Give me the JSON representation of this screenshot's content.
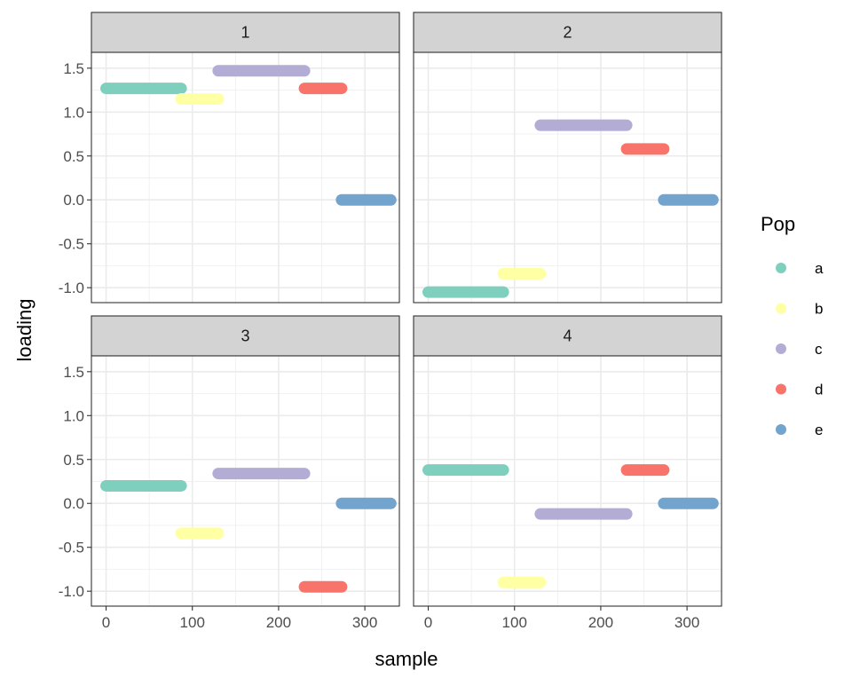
{
  "chart_data": {
    "type": "scatter",
    "facet_variable": "",
    "xlabel": "sample",
    "ylabel": "loading",
    "xlim": [
      -17,
      340
    ],
    "ylim": [
      -1.17,
      1.68
    ],
    "x_ticks": [
      0,
      100,
      200,
      300
    ],
    "y_ticks": [
      -1.0,
      -0.5,
      0.0,
      0.5,
      1.0,
      1.5
    ],
    "grid": true,
    "legend": {
      "title": "Pop",
      "position": "right",
      "entries": [
        {
          "label": "a",
          "color": "#7FCFBF"
        },
        {
          "label": "b",
          "color": "#FFFFA3"
        },
        {
          "label": "c",
          "color": "#B3ADD6"
        },
        {
          "label": "d",
          "color": "#F8736A"
        },
        {
          "label": "e",
          "color": "#72A4CE"
        }
      ]
    },
    "pop_ranges": [
      {
        "name": "a",
        "x_start": 0,
        "x_end": 87
      },
      {
        "name": "b",
        "x_start": 87,
        "x_end": 130
      },
      {
        "name": "c",
        "x_start": 130,
        "x_end": 230
      },
      {
        "name": "d",
        "x_start": 230,
        "x_end": 273
      },
      {
        "name": "e",
        "x_start": 273,
        "x_end": 330
      }
    ],
    "panels": [
      {
        "strip": "1",
        "series": [
          {
            "name": "a",
            "y": 1.27
          },
          {
            "name": "b",
            "y": 1.15
          },
          {
            "name": "c",
            "y": 1.47
          },
          {
            "name": "d",
            "y": 1.27
          },
          {
            "name": "e",
            "y": 0.0
          }
        ]
      },
      {
        "strip": "2",
        "series": [
          {
            "name": "a",
            "y": -1.05
          },
          {
            "name": "b",
            "y": -0.84
          },
          {
            "name": "c",
            "y": 0.85
          },
          {
            "name": "d",
            "y": 0.58
          },
          {
            "name": "e",
            "y": 0.0
          }
        ]
      },
      {
        "strip": "3",
        "series": [
          {
            "name": "a",
            "y": 0.2
          },
          {
            "name": "b",
            "y": -0.34
          },
          {
            "name": "c",
            "y": 0.34
          },
          {
            "name": "d",
            "y": -0.95
          },
          {
            "name": "e",
            "y": 0.0
          }
        ]
      },
      {
        "strip": "4",
        "series": [
          {
            "name": "a",
            "y": 0.38
          },
          {
            "name": "b",
            "y": -0.9
          },
          {
            "name": "c",
            "y": -0.12
          },
          {
            "name": "d",
            "y": 0.38
          },
          {
            "name": "e",
            "y": 0.0
          }
        ]
      }
    ]
  }
}
